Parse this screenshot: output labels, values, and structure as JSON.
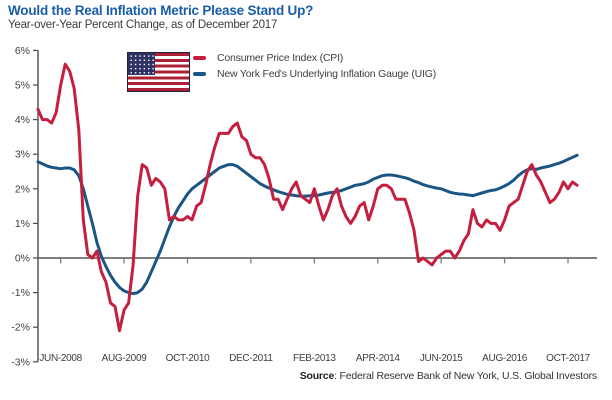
{
  "header": {
    "title": "Would the Real Inflation Metric Please Stand Up?",
    "subtitle": "Year-over-Year Percent Change, as of December 2017"
  },
  "legend": {
    "flag_name": "us-flag",
    "cpi_label": "Consumer Price Index (CPI)",
    "uig_label": "New York Fed's Underlying Inflation Gauge (UIG)"
  },
  "source": {
    "label": "Source",
    "text": ": Federal Reserve Bank of New York, U.S. Global Investors"
  },
  "colors": {
    "cpi_red": "#c41f3e",
    "uig_blue": "#1b5583",
    "title_blue": "#1a5da8",
    "zero_axis_gray": "#7f7f7f",
    "y_axis_gray": "#4a4a4a"
  },
  "chart_data": {
    "type": "line",
    "title": "Would the Real Inflation Metric Please Stand Up?",
    "subtitle": "Year-over-Year Percent Change, as of December 2017",
    "xlabel": "",
    "ylabel": "Year-over-Year Percent Change",
    "x_start": "2008-01",
    "x_end": "2017-12",
    "x_frequency": "monthly",
    "ylim": [
      -3,
      6
    ],
    "grid": false,
    "legend_position": "top-left-inside",
    "y_tick_values": [
      6,
      5,
      4,
      3,
      2,
      1,
      0,
      -1,
      -2,
      -3
    ],
    "y_tick_labels": [
      "6%",
      "5%",
      "4%",
      "3%",
      "2%",
      "1%",
      "0%",
      "-1%",
      "-2%",
      "-3%"
    ],
    "x_tick_months": [
      5,
      19,
      33,
      47,
      61,
      75,
      89,
      103,
      117
    ],
    "x_tick_labels": [
      "JUN-2008",
      "AUG-2009",
      "OCT-2010",
      "DEC-2011",
      "FEB-2013",
      "APR-2014",
      "JUN-2015",
      "AUG-2016",
      "OCT-2017"
    ],
    "series": [
      {
        "name": "Consumer Price Index (CPI)",
        "color": "#c41f3e",
        "values": [
          4.3,
          4.0,
          4.0,
          3.9,
          4.2,
          5.0,
          5.6,
          5.4,
          4.9,
          3.7,
          1.1,
          0.1,
          0.0,
          0.2,
          -0.4,
          -0.7,
          -1.3,
          -1.4,
          -2.1,
          -1.5,
          -1.3,
          -0.2,
          1.8,
          2.7,
          2.6,
          2.1,
          2.3,
          2.2,
          2.0,
          1.1,
          1.2,
          1.1,
          1.1,
          1.2,
          1.1,
          1.5,
          1.6,
          2.1,
          2.7,
          3.2,
          3.6,
          3.6,
          3.6,
          3.8,
          3.9,
          3.5,
          3.4,
          3.0,
          2.9,
          2.9,
          2.7,
          2.3,
          1.7,
          1.7,
          1.4,
          1.7,
          2.0,
          2.2,
          1.8,
          1.7,
          1.6,
          2.0,
          1.5,
          1.1,
          1.4,
          1.8,
          2.0,
          1.5,
          1.2,
          1.0,
          1.2,
          1.5,
          1.6,
          1.1,
          1.5,
          2.0,
          2.1,
          2.1,
          2.0,
          1.7,
          1.7,
          1.7,
          1.3,
          0.8,
          -0.1,
          0.0,
          -0.1,
          -0.2,
          0.0,
          0.1,
          0.2,
          0.2,
          0.0,
          0.2,
          0.5,
          0.7,
          1.4,
          1.0,
          0.9,
          1.1,
          1.0,
          1.0,
          0.8,
          1.1,
          1.5,
          1.6,
          1.7,
          2.1,
          2.5,
          2.7,
          2.4,
          2.2,
          1.9,
          1.6,
          1.7,
          1.9,
          2.2,
          2.0,
          2.2,
          2.1
        ]
      },
      {
        "name": "New York Fed's Underlying Inflation Gauge (UIG)",
        "color": "#1b5583",
        "values": [
          2.78,
          2.72,
          2.66,
          2.62,
          2.6,
          2.58,
          2.6,
          2.6,
          2.55,
          2.38,
          2.0,
          1.5,
          1.0,
          0.45,
          0.05,
          -0.25,
          -0.5,
          -0.7,
          -0.85,
          -0.95,
          -1.0,
          -1.03,
          -1.0,
          -0.9,
          -0.7,
          -0.4,
          -0.1,
          0.2,
          0.55,
          0.9,
          1.2,
          1.45,
          1.65,
          1.85,
          2.0,
          2.1,
          2.2,
          2.3,
          2.4,
          2.5,
          2.6,
          2.65,
          2.7,
          2.7,
          2.65,
          2.55,
          2.45,
          2.35,
          2.25,
          2.15,
          2.08,
          2.02,
          1.97,
          1.92,
          1.88,
          1.84,
          1.82,
          1.8,
          1.79,
          1.79,
          1.8,
          1.8,
          1.82,
          1.85,
          1.88,
          1.9,
          1.92,
          1.95,
          2.0,
          2.05,
          2.1,
          2.12,
          2.15,
          2.2,
          2.28,
          2.33,
          2.38,
          2.4,
          2.4,
          2.38,
          2.35,
          2.32,
          2.28,
          2.22,
          2.18,
          2.12,
          2.08,
          2.05,
          2.02,
          2.0,
          1.95,
          1.9,
          1.87,
          1.85,
          1.84,
          1.82,
          1.8,
          1.84,
          1.88,
          1.92,
          1.95,
          1.97,
          2.02,
          2.08,
          2.15,
          2.25,
          2.38,
          2.48,
          2.55,
          2.58,
          2.56,
          2.6,
          2.63,
          2.66,
          2.7,
          2.74,
          2.79,
          2.85,
          2.91,
          2.97
        ]
      }
    ]
  }
}
